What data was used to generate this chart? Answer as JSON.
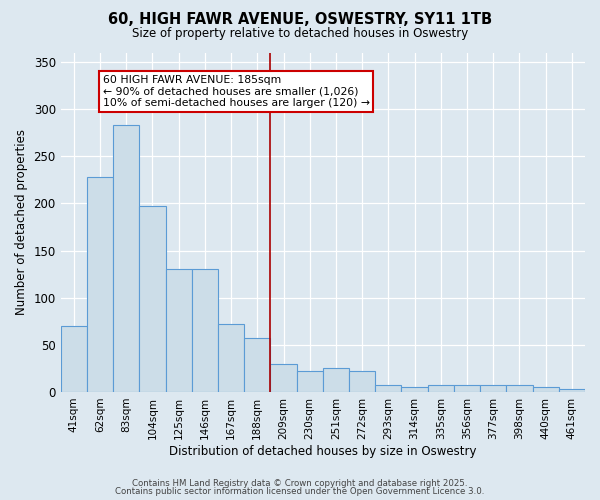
{
  "title": "60, HIGH FAWR AVENUE, OSWESTRY, SY11 1TB",
  "subtitle": "Size of property relative to detached houses in Oswestry",
  "xlabel": "Distribution of detached houses by size in Oswestry",
  "ylabel": "Number of detached properties",
  "bar_color": "#ccdde8",
  "bar_edge_color": "#5b9bd5",
  "background_color": "#dde8f0",
  "grid_color": "#ffffff",
  "categories": [
    "41sqm",
    "62sqm",
    "83sqm",
    "104sqm",
    "125sqm",
    "146sqm",
    "167sqm",
    "188sqm",
    "209sqm",
    "230sqm",
    "251sqm",
    "272sqm",
    "293sqm",
    "314sqm",
    "335sqm",
    "356sqm",
    "377sqm",
    "398sqm",
    "440sqm",
    "461sqm"
  ],
  "values": [
    70,
    228,
    283,
    197,
    130,
    130,
    72,
    57,
    30,
    22,
    25,
    22,
    7,
    5,
    7,
    7,
    7,
    7,
    5,
    3
  ],
  "red_line_x": 7.5,
  "annotation_text": "60 HIGH FAWR AVENUE: 185sqm\n← 90% of detached houses are smaller (1,026)\n10% of semi-detached houses are larger (120) →",
  "annotation_box_color": "#ffffff",
  "annotation_box_edge": "#cc0000",
  "ylim": [
    0,
    360
  ],
  "yticks": [
    0,
    50,
    100,
    150,
    200,
    250,
    300,
    350
  ],
  "footer_line1": "Contains HM Land Registry data © Crown copyright and database right 2025.",
  "footer_line2": "Contains public sector information licensed under the Open Government Licence 3.0."
}
